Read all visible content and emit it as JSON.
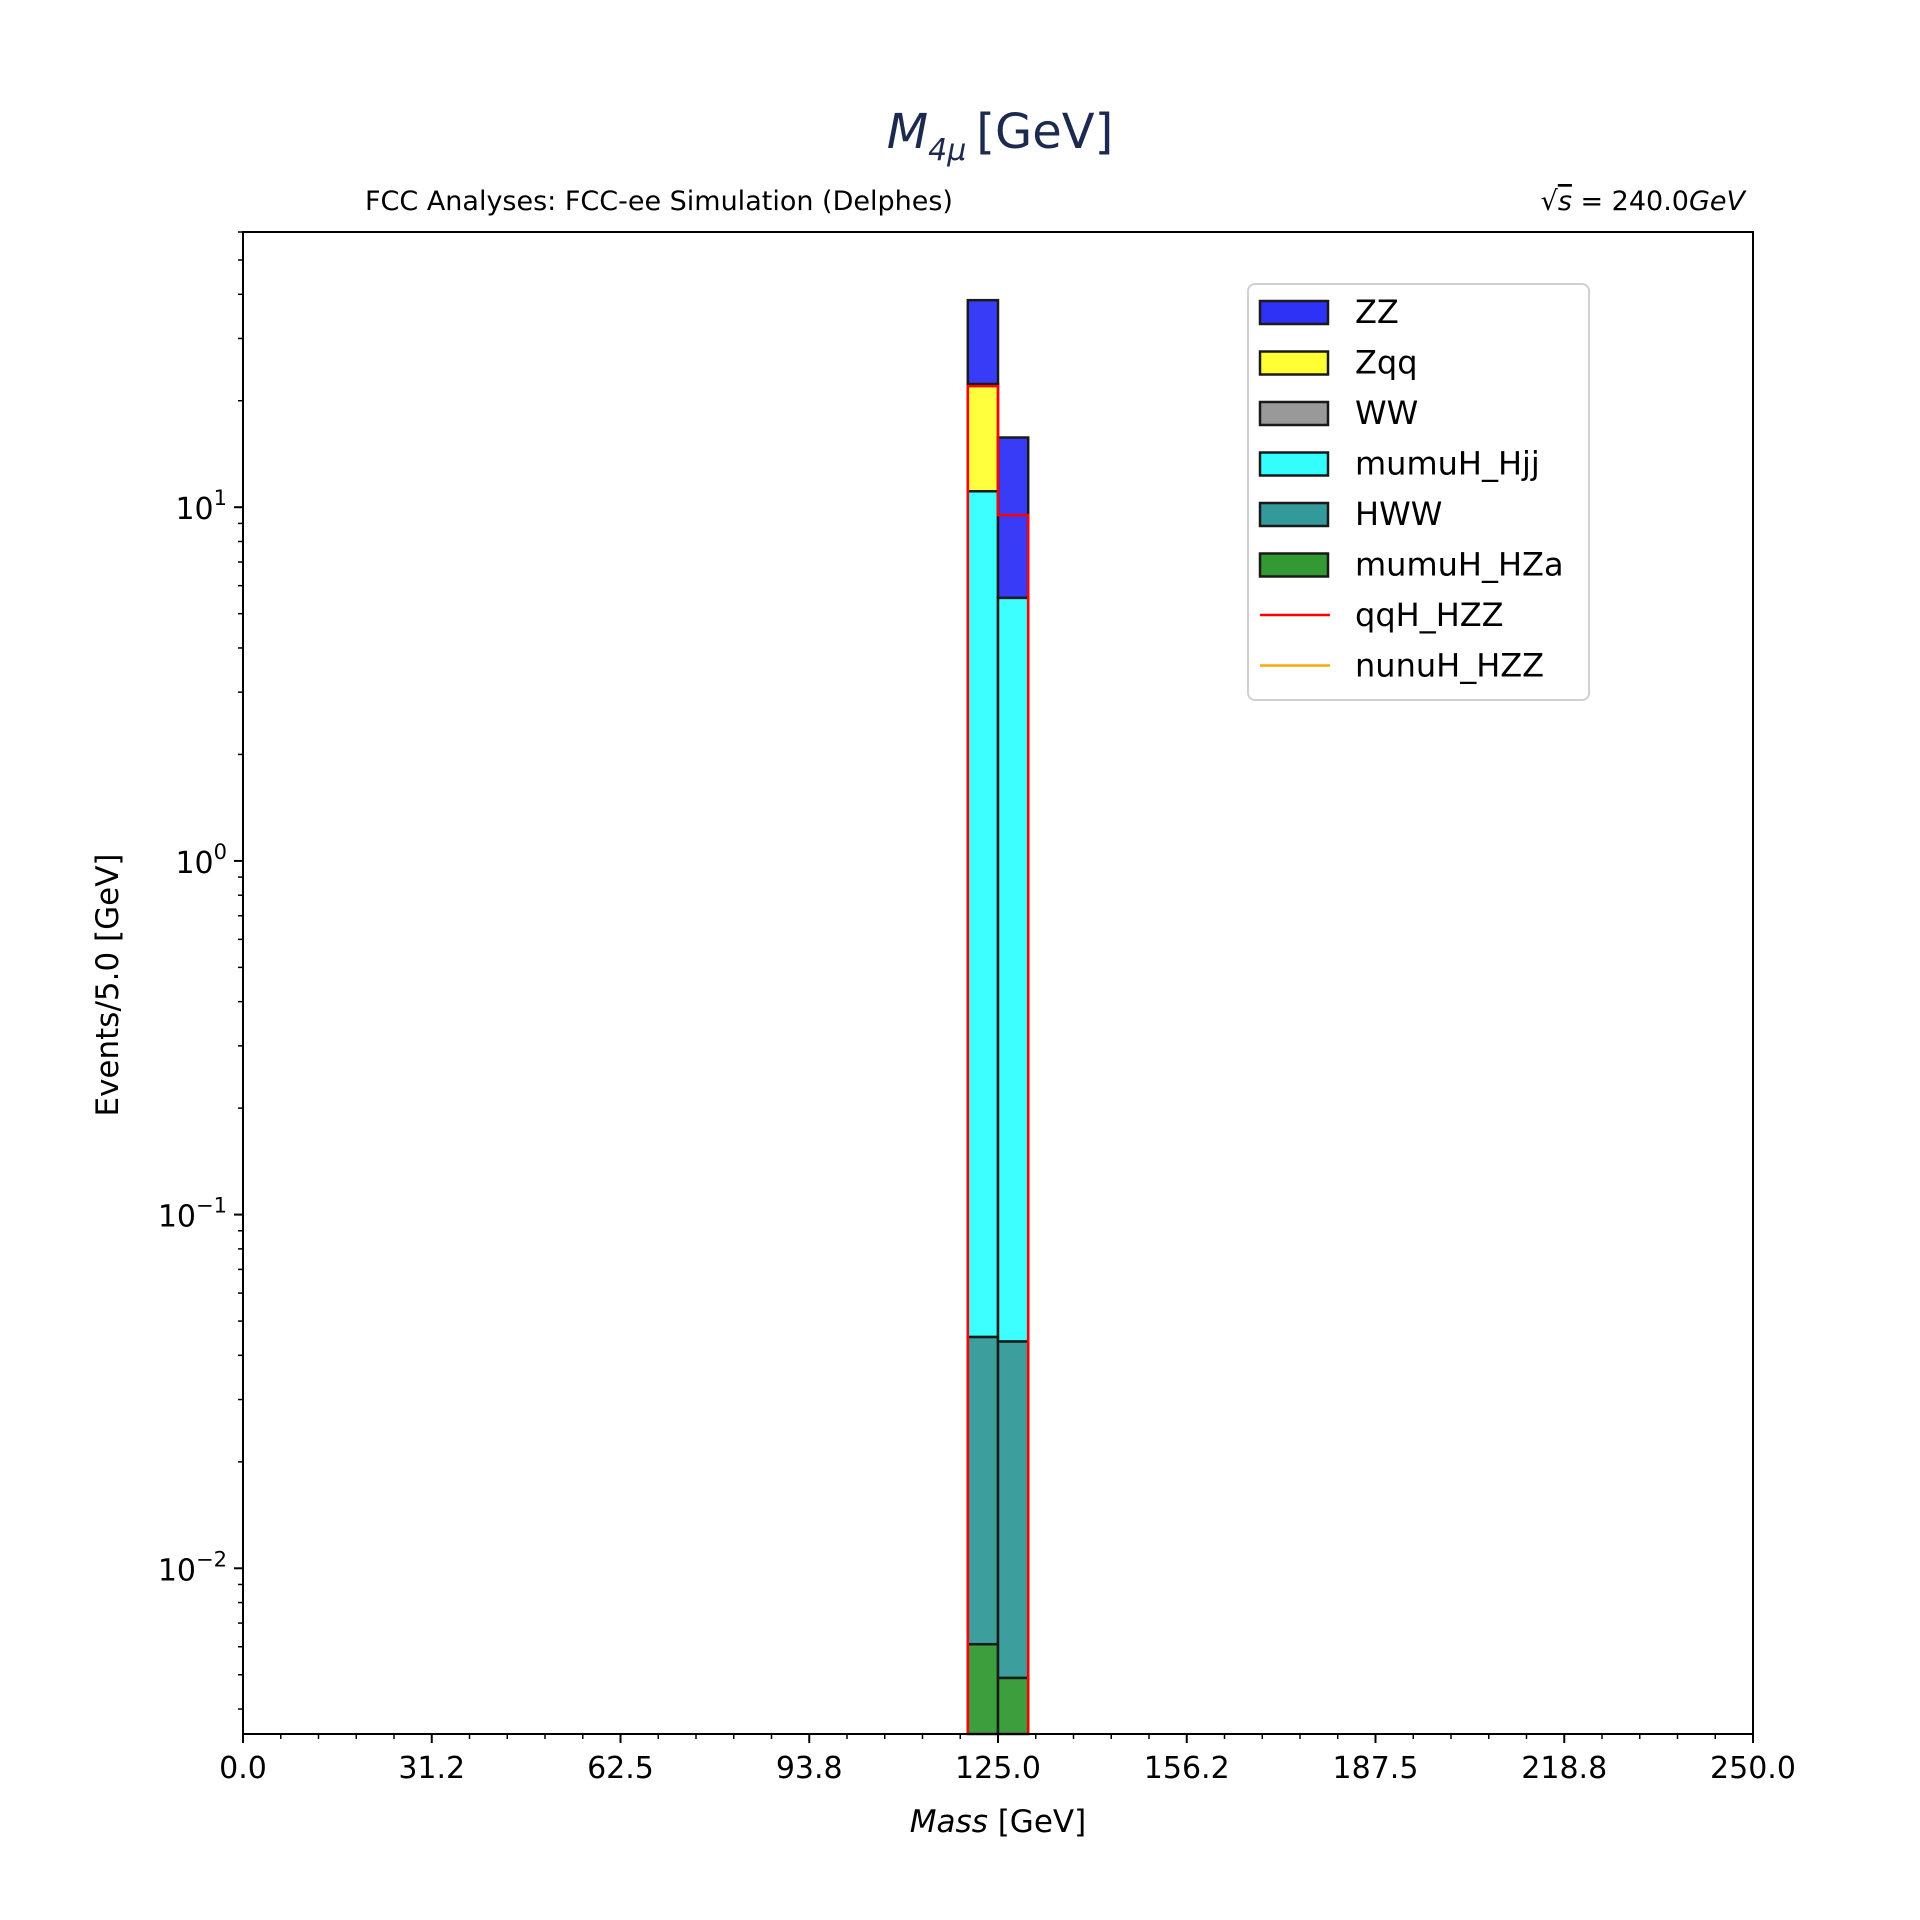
{
  "chart_data": {
    "type": "bar",
    "subtype": "stacked-histogram",
    "title_main": "M",
    "title_sub": "4μ",
    "title_unit": "[GeV]",
    "left_text": "FCC Analyses: FCC-ee Simulation (Delphes)",
    "right_text_sqrt": "√",
    "right_text_s": "s",
    "right_text_val": " = 240.0",
    "right_text_unit": "GeV",
    "xlabel_ital": "Mass",
    "xlabel_unit": " [GeV]",
    "ylabel": "Events/5.0 [GeV]",
    "xlim": [
      0,
      250
    ],
    "ylog": true,
    "ylim": [
      0.0034,
      60
    ],
    "xticks": [
      "0.0",
      "31.2",
      "62.5",
      "93.8",
      "125.0",
      "156.2",
      "187.5",
      "218.8",
      "250.0"
    ],
    "xtick_values": [
      0,
      31.25,
      62.5,
      93.75,
      125,
      156.25,
      187.5,
      218.75,
      250
    ],
    "yticks": [
      {
        "value": 10,
        "base": "10",
        "exp": "1"
      },
      {
        "value": 1,
        "base": "10",
        "exp": "0"
      },
      {
        "value": 0.1,
        "base": "10",
        "exp": "−1"
      },
      {
        "value": 0.01,
        "base": "10",
        "exp": "−2"
      }
    ],
    "bins": [
      [
        120,
        125
      ],
      [
        125,
        130
      ]
    ],
    "stack_order_bottom_to_top": [
      "mumuH_HZa",
      "HWW",
      "mumuH_Hjj",
      "WW",
      "Zqq",
      "ZZ"
    ],
    "series": [
      {
        "name": "ZZ",
        "color": "#2e31f6",
        "values": [
          16.2,
          10.2
        ]
      },
      {
        "name": "Zqq",
        "color": "#ffff33",
        "values": [
          11.2,
          0
        ]
      },
      {
        "name": "WW",
        "color": "#999999",
        "values": [
          0,
          0
        ]
      },
      {
        "name": "mumuH_Hjj",
        "color": "#33ffff",
        "values": [
          11.05,
          5.5
        ]
      },
      {
        "name": "HWW",
        "color": "#339999",
        "values": [
          0.039,
          0.0389
        ]
      },
      {
        "name": "mumuH_HZa",
        "color": "#339933",
        "values": [
          0.0061,
          0.0049
        ]
      },
      {
        "name": "qqH_HZZ",
        "color": "#ff0000",
        "line": true,
        "values": [
          22.0,
          9.5
        ]
      },
      {
        "name": "nunuH_HZZ",
        "color": "#ffa500",
        "line": true,
        "values": [
          0,
          0
        ]
      }
    ],
    "legend": [
      "ZZ",
      "Zqq",
      "WW",
      "mumuH_Hjj",
      "HWW",
      "mumuH_HZa",
      "qqH_HZZ",
      "nunuH_HZZ"
    ],
    "legend_placement": "upper-right",
    "grid": false
  }
}
